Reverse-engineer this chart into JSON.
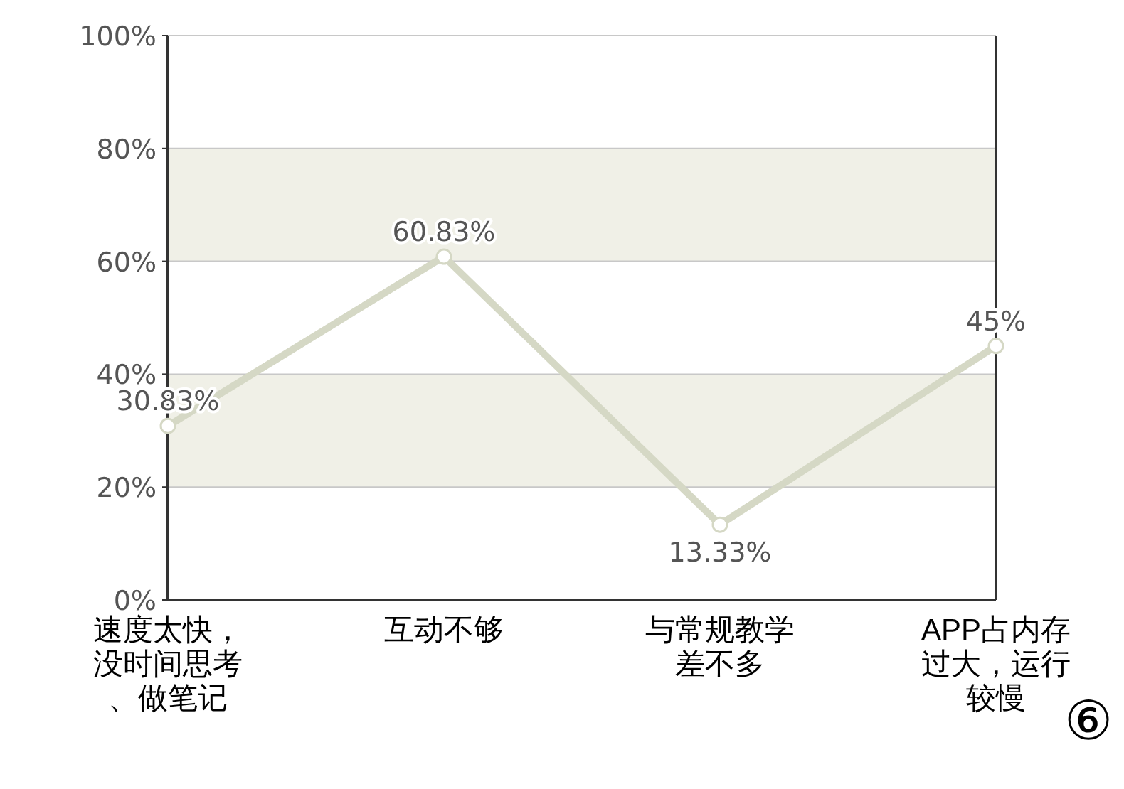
{
  "chart_data": {
    "type": "line",
    "categories": [
      "速度太快，没时间思考、做笔记",
      "互动不够",
      "与常规教学差不多",
      "APP占内存过大，运行较慢"
    ],
    "series": [
      {
        "color": "#d5d8c5",
        "values": [
          30.83,
          60.83,
          13.33,
          45
        ],
        "value_labels": [
          "30.83%",
          "60.83%",
          "13.33%",
          "45%"
        ]
      }
    ],
    "ylim": [
      0,
      100
    ],
    "yticks": [
      {
        "value": 0,
        "label": "0%"
      },
      {
        "value": 20,
        "label": "20%"
      },
      {
        "value": 40,
        "label": "40%"
      },
      {
        "value": 60,
        "label": "60%"
      },
      {
        "value": 80,
        "label": "80%"
      },
      {
        "value": 100,
        "label": "100%"
      }
    ],
    "grid": "y",
    "marker": "circle",
    "line_style": "solid",
    "bands": [
      {
        "axis": "y",
        "from": 20,
        "to": 40,
        "color": "#f0f0e7"
      },
      {
        "axis": "y",
        "from": 60,
        "to": 80,
        "color": "#f0f0e7"
      }
    ],
    "annotations": [
      "⑥"
    ]
  }
}
